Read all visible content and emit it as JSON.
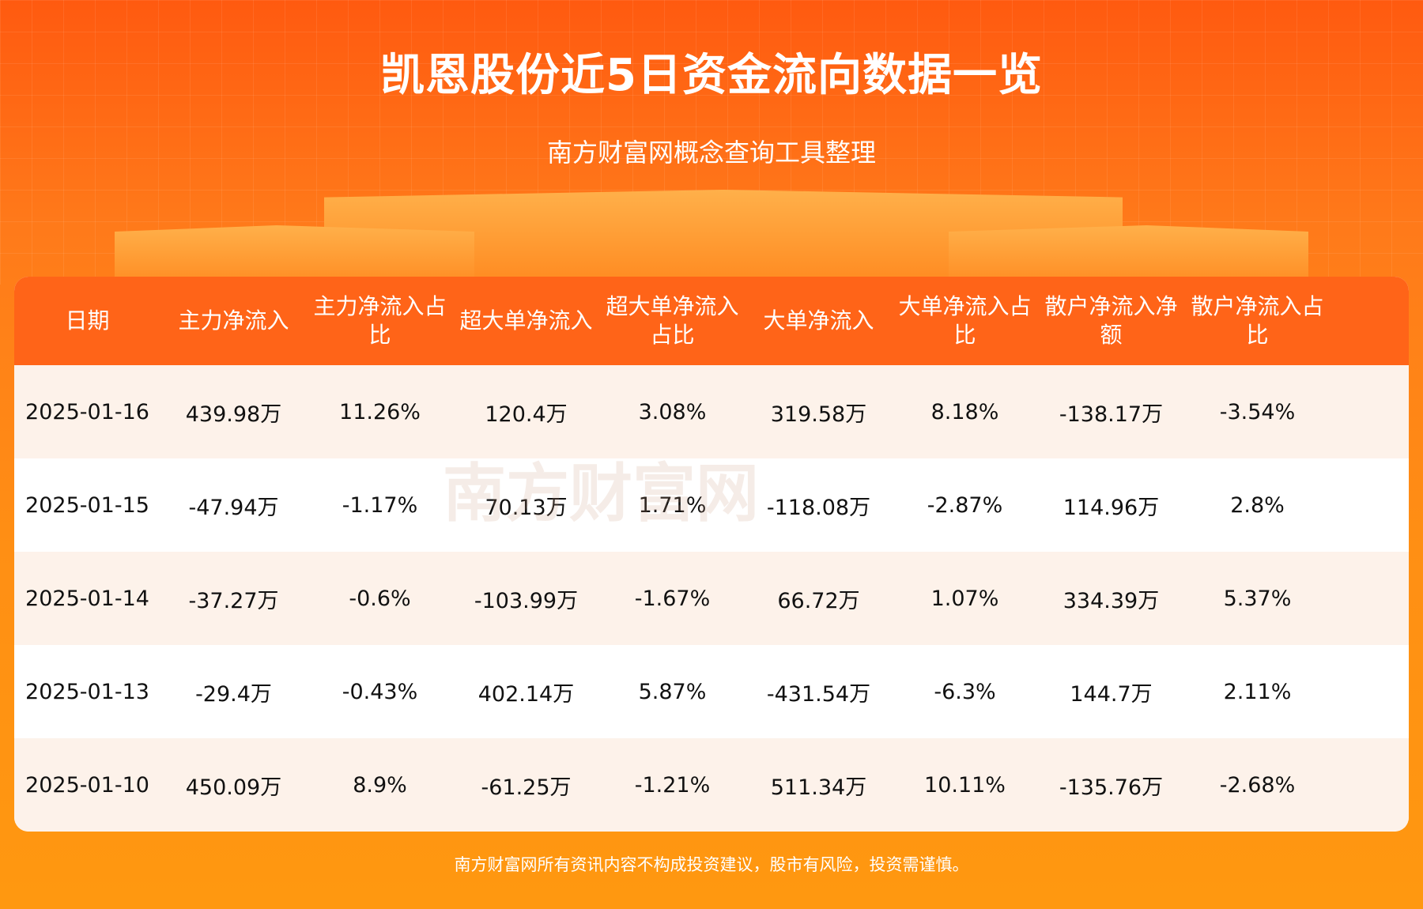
{
  "header": {
    "title": "凯恩股份近5日资金流向数据一览",
    "subtitle": "南方财富网概念查询工具整理"
  },
  "table": {
    "columns": [
      "日期",
      "主力净流入",
      "主力净流入占比",
      "超大单净流入",
      "超大单净流入占比",
      "大单净流入",
      "大单净流入占比",
      "散户净流入净额",
      "散户净流入占比"
    ],
    "rows": [
      [
        "2025-01-16",
        "439.98万",
        "11.26%",
        "120.4万",
        "3.08%",
        "319.58万",
        "8.18%",
        "-138.17万",
        "-3.54%"
      ],
      [
        "2025-01-15",
        "-47.94万",
        "-1.17%",
        "70.13万",
        "1.71%",
        "-118.08万",
        "-2.87%",
        "114.96万",
        "2.8%"
      ],
      [
        "2025-01-14",
        "-37.27万",
        "-0.6%",
        "-103.99万",
        "-1.67%",
        "66.72万",
        "1.07%",
        "334.39万",
        "5.37%"
      ],
      [
        "2025-01-13",
        "-29.4万",
        "-0.43%",
        "402.14万",
        "5.87%",
        "-431.54万",
        "-6.3%",
        "144.7万",
        "2.11%"
      ],
      [
        "2025-01-10",
        "450.09万",
        "8.9%",
        "-61.25万",
        "-1.21%",
        "511.34万",
        "10.11%",
        "-135.76万",
        "-2.68%"
      ]
    ]
  },
  "watermark": "南方财富网 southmoney.com",
  "footer": "南方财富网所有资讯内容不构成投资建议，股市有风险，投资需谨慎。",
  "colors": {
    "header_bg": "#ff6418",
    "row_alt": "#fdf2ea",
    "page_bg": "#ff8a15"
  }
}
